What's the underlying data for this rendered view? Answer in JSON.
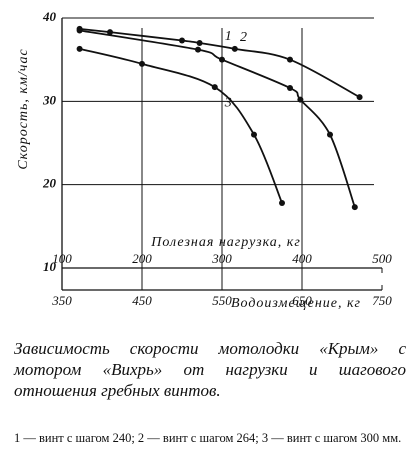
{
  "chart_data": {
    "type": "line",
    "ylabel": "Скорость, км/час",
    "xlabel": "Полезная нагрузка, кг",
    "x2label": "Водоизмещение, кг",
    "ylim": [
      10,
      40
    ],
    "yticks": [
      10,
      20,
      30,
      40
    ],
    "xlim": [
      100,
      500
    ],
    "xticks": [
      100,
      200,
      300,
      400,
      500
    ],
    "x2lim": [
      350,
      750
    ],
    "x2ticks": [
      350,
      450,
      550,
      650,
      750
    ],
    "grid": true,
    "markers": true,
    "series": [
      {
        "name": "1",
        "color": "#111111",
        "x": [
          122,
          160,
          250,
          272,
          316,
          385,
          472
        ],
        "values": [
          38.7,
          38.3,
          37.3,
          37.0,
          36.3,
          35.0,
          30.5
        ]
      },
      {
        "name": "2",
        "color": "#111111",
        "x": [
          122,
          270,
          300,
          385,
          398,
          435,
          466
        ],
        "values": [
          38.5,
          36.2,
          35.0,
          31.6,
          30.2,
          26.0,
          17.3
        ]
      },
      {
        "name": "3",
        "color": "#111111",
        "x": [
          122,
          200,
          291,
          340,
          375
        ],
        "values": [
          36.3,
          34.5,
          31.7,
          26.0,
          17.8
        ]
      }
    ]
  },
  "caption": "Зависимость скорости мотолодки «Крым» с мотором «Вихрь» от нагрузки и шагового отношения гребных винтов.",
  "note": "1 — винт с шагом 240; 2 — винт с шагом 264; 3 — винт с шагом 300 мм."
}
